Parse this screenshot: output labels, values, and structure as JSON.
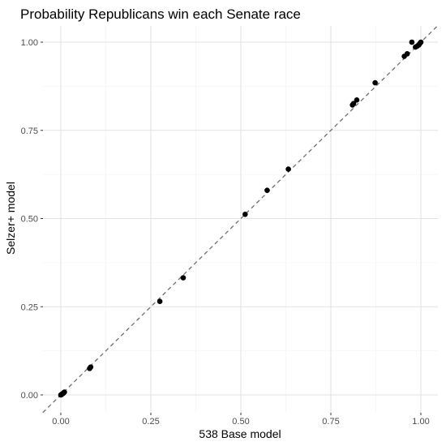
{
  "chart_data": {
    "type": "scatter",
    "title": "Probability Republicans win each Senate race",
    "xlabel": "538 Base model",
    "ylabel": "Selzer+ model",
    "xlim": [
      -0.05,
      1.05
    ],
    "ylim": [
      -0.05,
      1.05
    ],
    "x_ticks": [
      0,
      0.25,
      0.5,
      0.75,
      1
    ],
    "x_tick_labels": [
      "0.00",
      "0.25",
      "0.50",
      "0.75",
      "1.00"
    ],
    "y_ticks": [
      0,
      0.25,
      0.5,
      0.75,
      1
    ],
    "y_tick_labels": [
      "0.00",
      "0.25",
      "0.50",
      "0.75",
      "1.00"
    ],
    "grid": true,
    "reference_line": {
      "slope": 1,
      "intercept": 0,
      "style": "dashed"
    },
    "point_color": "#000000",
    "points": [
      {
        "x": 0.0,
        "y": 0.0
      },
      {
        "x": 0.002,
        "y": 0.001
      },
      {
        "x": 0.004,
        "y": 0.003
      },
      {
        "x": 0.006,
        "y": 0.004
      },
      {
        "x": 0.008,
        "y": 0.006
      },
      {
        "x": 0.01,
        "y": 0.008
      },
      {
        "x": 0.08,
        "y": 0.075
      },
      {
        "x": 0.083,
        "y": 0.079
      },
      {
        "x": 0.275,
        "y": 0.265
      },
      {
        "x": 0.34,
        "y": 0.332
      },
      {
        "x": 0.512,
        "y": 0.512
      },
      {
        "x": 0.573,
        "y": 0.58
      },
      {
        "x": 0.632,
        "y": 0.64
      },
      {
        "x": 0.81,
        "y": 0.822
      },
      {
        "x": 0.813,
        "y": 0.826
      },
      {
        "x": 0.822,
        "y": 0.836
      },
      {
        "x": 0.873,
        "y": 0.885
      },
      {
        "x": 0.954,
        "y": 0.96
      },
      {
        "x": 0.962,
        "y": 0.967
      },
      {
        "x": 0.975,
        "y": 1.0
      },
      {
        "x": 0.985,
        "y": 0.986
      },
      {
        "x": 0.99,
        "y": 0.989
      },
      {
        "x": 0.994,
        "y": 0.992
      },
      {
        "x": 0.997,
        "y": 0.996
      },
      {
        "x": 1.0,
        "y": 1.0
      }
    ]
  }
}
